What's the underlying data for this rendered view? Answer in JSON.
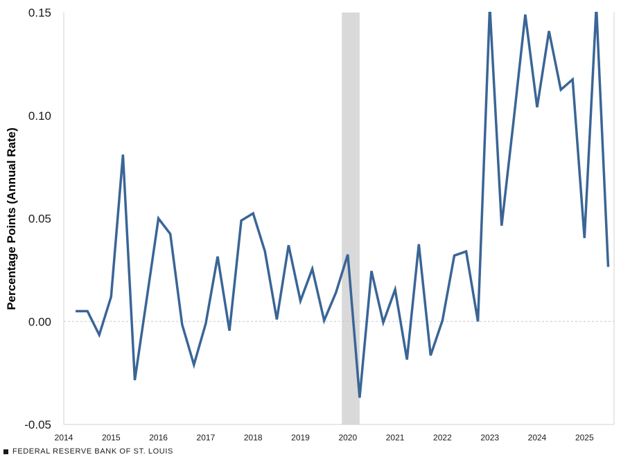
{
  "chart_data": {
    "type": "line",
    "title": "",
    "xlabel": "",
    "ylabel": "Percentage Points (Annual Rate)",
    "ylim": [
      -0.05,
      0.15
    ],
    "yticks": [
      "0.15",
      "0.10",
      "0.05",
      "0.00",
      "-0.05"
    ],
    "xticks": [
      "2014",
      "2015",
      "2016",
      "2017",
      "2018",
      "2019",
      "2020",
      "2021",
      "2022",
      "2023",
      "2024",
      "2025"
    ],
    "xlim": [
      2014.0,
      2025.625
    ],
    "recession": [
      [
        2019.875,
        2020.25
      ]
    ],
    "line_color": "#3a6596",
    "recession_color": "#d9d9d9",
    "series": [
      {
        "x": [
          2014.25,
          2014.5,
          2014.75,
          2015.0,
          2015.25,
          2015.5,
          2015.75,
          2016.0,
          2016.25,
          2016.5,
          2016.75,
          2017.0,
          2017.25,
          2017.5,
          2017.75,
          2018.0,
          2018.25,
          2018.5,
          2018.75,
          2019.0,
          2019.25,
          2019.5,
          2019.75,
          2020.0,
          2020.25,
          2020.5,
          2020.75,
          2021.0,
          2021.25,
          2021.5,
          2021.75,
          2022.0,
          2022.25,
          2022.5,
          2022.75,
          2023.0,
          2023.25,
          2023.5,
          2023.75,
          2024.0,
          2024.25,
          2024.5,
          2024.75,
          2025.0,
          2025.25,
          2025.5
        ],
        "values": [
          0.005,
          0.005,
          -0.0065,
          0.012,
          0.081,
          -0.0285,
          0.0105,
          0.05,
          0.0425,
          -0.0015,
          -0.021,
          -0.001,
          0.0315,
          -0.0045,
          0.049,
          0.0525,
          0.034,
          0.001,
          0.037,
          0.01,
          0.0255,
          0.0005,
          0.014,
          0.0325,
          -0.037,
          0.0245,
          -0.0005,
          0.0155,
          -0.0185,
          0.0375,
          -0.0165,
          0.0005,
          0.032,
          0.034,
          0.0,
          0.153,
          0.0465,
          0.097,
          0.149,
          0.104,
          0.141,
          0.1125,
          0.1175,
          0.0405,
          0.153,
          0.0265
        ]
      }
    ]
  },
  "footer": {
    "source": "FEDERAL RESERVE BANK OF ST. LOUIS"
  }
}
